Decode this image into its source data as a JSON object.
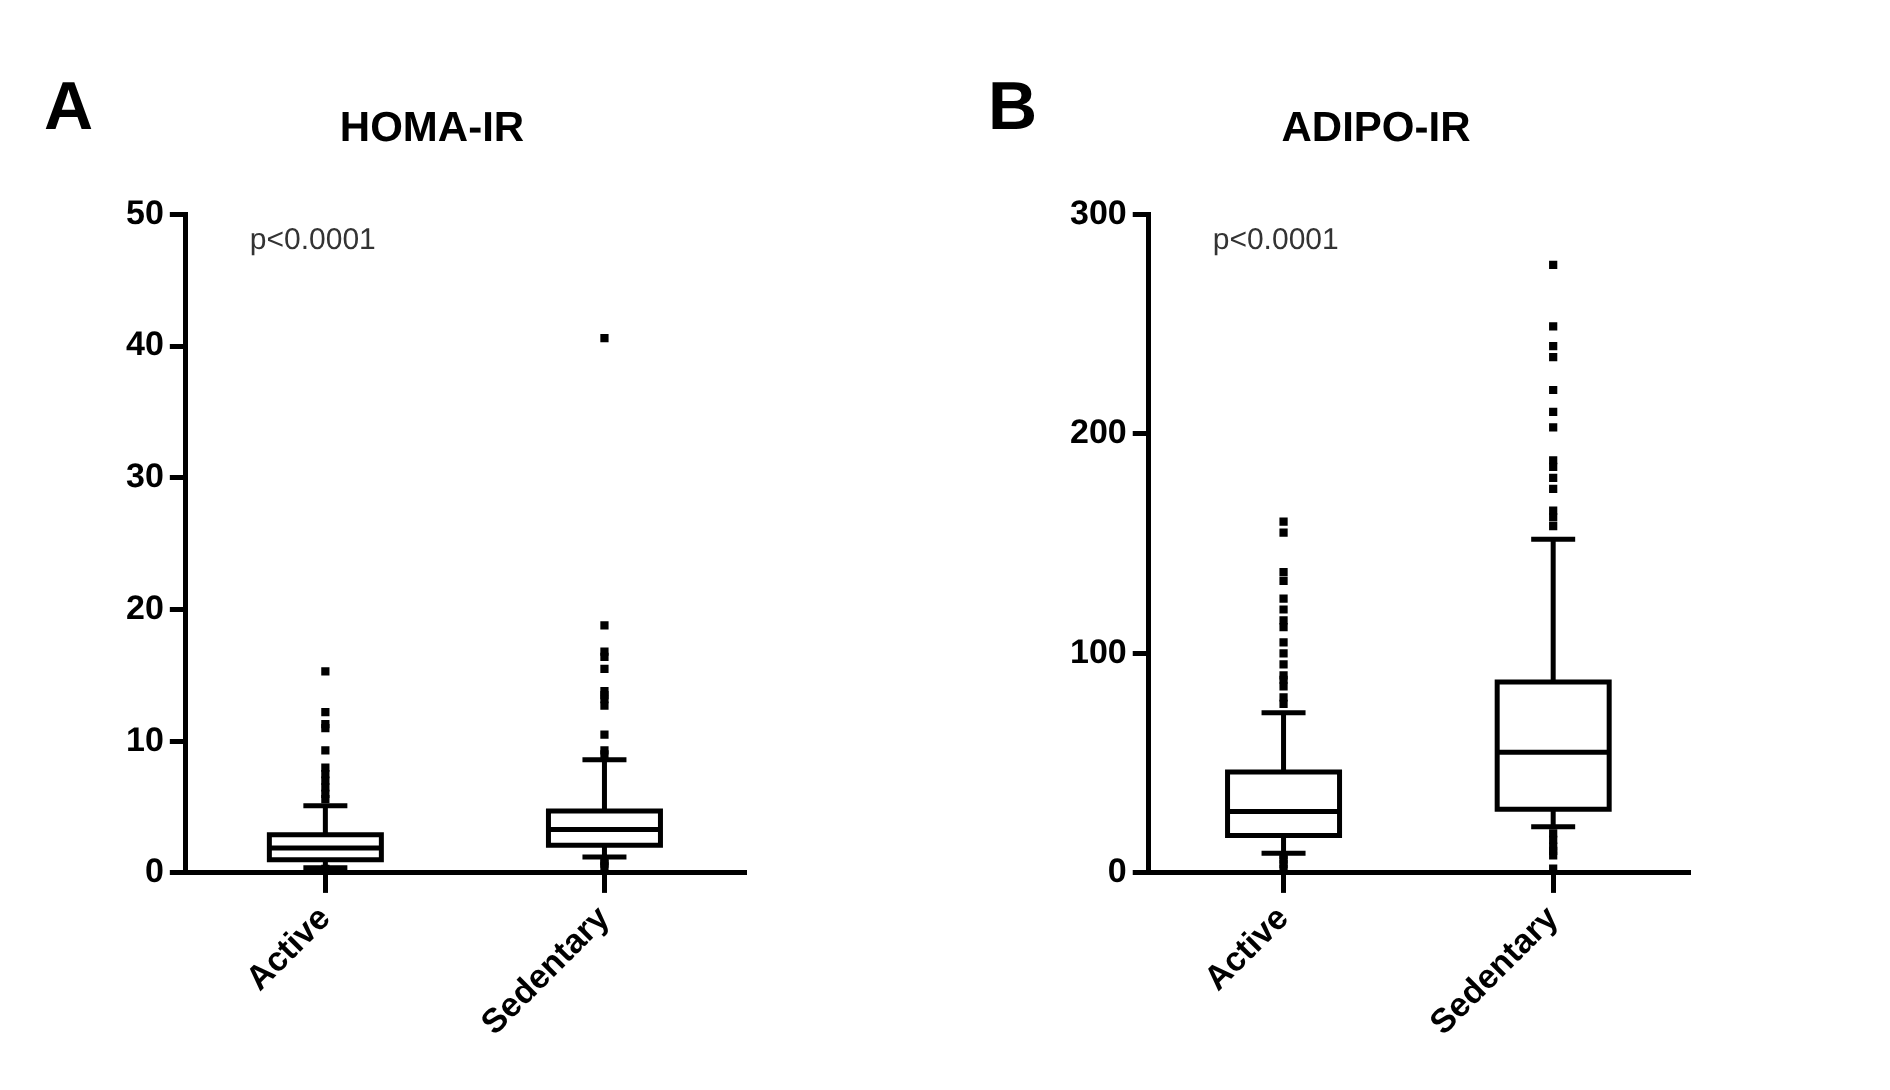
{
  "chart_data": [
    {
      "type": "box",
      "title": "HOMA-IR",
      "annotations": [
        "A",
        "p<0.0001"
      ],
      "categories": [
        "Active",
        "Sedentary"
      ],
      "color": "#000000",
      "ylim": [
        0,
        50
      ],
      "yticks": [
        0,
        10,
        20,
        30,
        40,
        50
      ],
      "grid": false,
      "boxes": [
        {
          "low": 0.4,
          "q1": 1.0,
          "median": 1.9,
          "q3": 2.9,
          "high": 5.1,
          "outliers": [
            15.3,
            12.2,
            11.3,
            11.0,
            9.3,
            8.0,
            7.5,
            7.0,
            6.5,
            6.0,
            5.6,
            0.3
          ]
        },
        {
          "low": 1.2,
          "q1": 2.1,
          "median": 3.3,
          "q3": 4.7,
          "high": 8.6,
          "outliers": [
            40.6,
            18.8,
            16.8,
            16.4,
            15.5,
            13.8,
            13.5,
            13.2,
            12.7,
            10.5,
            9.3,
            9.0,
            0.9,
            0.7,
            0.5
          ]
        }
      ]
    },
    {
      "type": "box",
      "title": "ADIPO-IR",
      "annotations": [
        "B",
        "p<0.0001"
      ],
      "categories": [
        "Active",
        "Sedentary"
      ],
      "color": "#000000",
      "ylim": [
        0,
        300
      ],
      "yticks": [
        0,
        100,
        200,
        300
      ],
      "grid": false,
      "boxes": [
        {
          "low": 9,
          "q1": 17,
          "median": 28,
          "q3": 46,
          "high": 73,
          "outliers": [
            160,
            155,
            137,
            133,
            125,
            120,
            115,
            112,
            105,
            100,
            95,
            90,
            88,
            85,
            80,
            77,
            8,
            6,
            4,
            2
          ]
        },
        {
          "low": 21,
          "q1": 29,
          "median": 55,
          "q3": 87,
          "high": 152,
          "outliers": [
            277,
            249,
            240,
            235,
            220,
            210,
            203,
            188,
            185,
            180,
            175,
            165,
            162,
            158,
            18,
            15,
            12,
            10,
            8,
            2
          ]
        }
      ]
    }
  ]
}
